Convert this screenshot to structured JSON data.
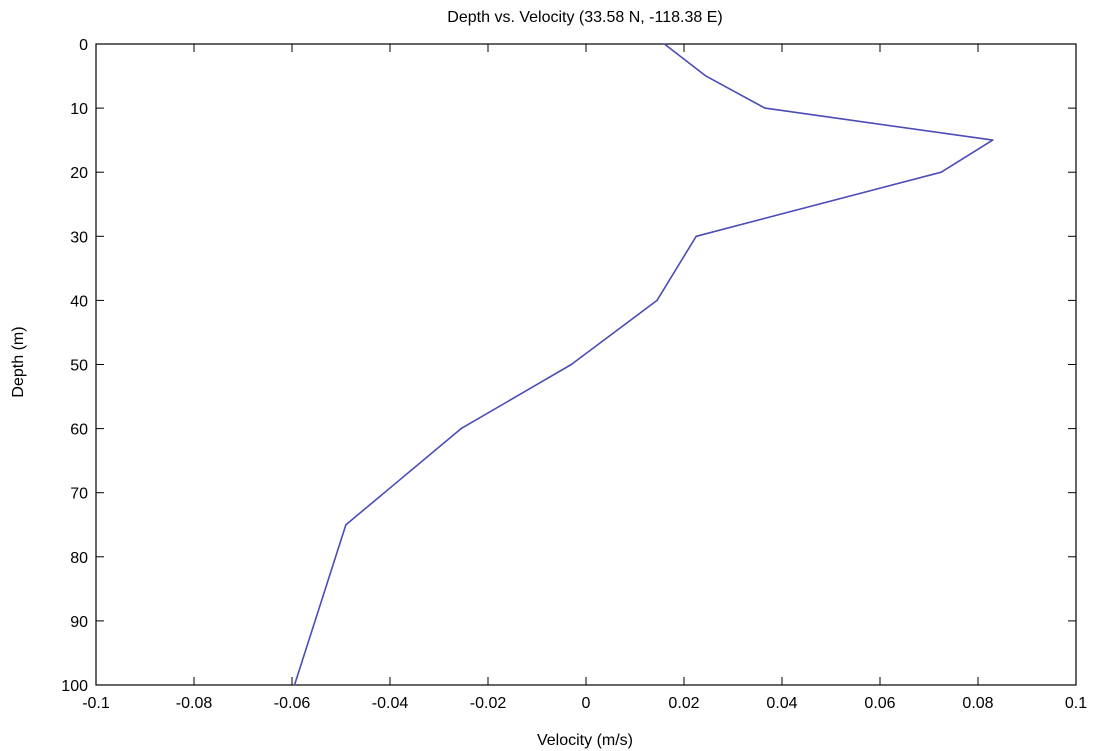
{
  "chart_data": {
    "type": "line",
    "title": "Depth vs. Velocity (33.58 N, -118.38 E)",
    "xlabel": "Velocity (m/s)",
    "ylabel": "Depth (m)",
    "xlim": [
      -0.1,
      0.1
    ],
    "ylim": [
      0,
      100
    ],
    "y_reversed": true,
    "grid": false,
    "legend": "none",
    "x_ticks": [
      -0.1,
      -0.08,
      -0.06,
      -0.04,
      -0.02,
      0,
      0.02,
      0.04,
      0.06,
      0.08,
      0.1
    ],
    "x_tick_labels": [
      "-0.1",
      "-0.08",
      "-0.06",
      "-0.04",
      "-0.02",
      "0",
      "0.02",
      "0.04",
      "0.06",
      "0.08",
      "0.1"
    ],
    "y_ticks": [
      0,
      10,
      20,
      30,
      40,
      50,
      60,
      70,
      80,
      90,
      100
    ],
    "y_tick_labels": [
      "0",
      "10",
      "20",
      "30",
      "40",
      "50",
      "60",
      "70",
      "80",
      "90",
      "100"
    ],
    "series": [
      {
        "color": "#4c4cb8",
        "points": [
          {
            "velocity": 0.016,
            "depth": 0
          },
          {
            "velocity": 0.0245,
            "depth": 5
          },
          {
            "velocity": 0.0365,
            "depth": 10
          },
          {
            "velocity": 0.083,
            "depth": 15
          },
          {
            "velocity": 0.0725,
            "depth": 20
          },
          {
            "velocity": 0.0225,
            "depth": 30
          },
          {
            "velocity": 0.0145,
            "depth": 40
          },
          {
            "velocity": -0.003,
            "depth": 50
          },
          {
            "velocity": -0.0255,
            "depth": 60
          },
          {
            "velocity": -0.049,
            "depth": 75
          },
          {
            "velocity": -0.0595,
            "depth": 100
          }
        ]
      }
    ]
  }
}
